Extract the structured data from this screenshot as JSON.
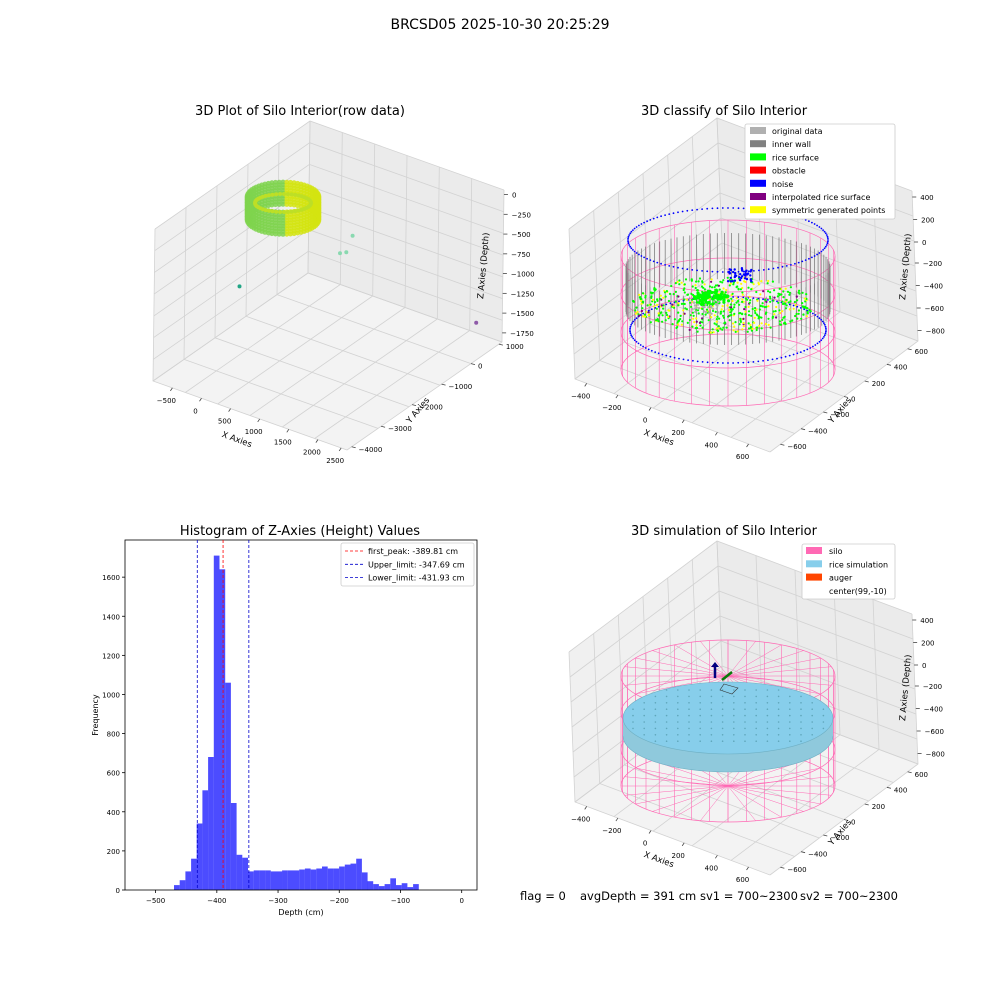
{
  "figure": {
    "title": "BRCSD05 2025-10-30 20:25:29"
  },
  "status": {
    "flag": "flag = 0",
    "avg_depth": "avgDepth = 391 cm",
    "sv1": "sv1 = 700~2300",
    "sv2": "sv2 = 700~2300"
  },
  "colors": {
    "original_data": "#b0b0b0",
    "inner_wall": "#808080",
    "rice_surface": "#00ff00",
    "obstacle": "#ff0000",
    "noise": "#0000ff",
    "interpolated_rice_surface": "#800080",
    "symmetric_generated_points": "#ffff00",
    "silo": "#ff69b4",
    "rice_simulation": "#87ceeb",
    "auger": "#ff4500",
    "hist_bar": "#0000ff",
    "first_peak_line": "#ff0000",
    "limit_line": "#0000cc"
  },
  "chart_data": [
    {
      "type": "scatter",
      "projection": "3d",
      "title": "3D Plot of Silo Interior(row data)",
      "xlabel": "X Axies",
      "ylabel": "Y Axies",
      "zlabel": "Z Axies (Depth)",
      "xticks": [
        "−500",
        "0",
        "500",
        "1000",
        "1500",
        "2000",
        "2500"
      ],
      "yticks": [
        "−4000",
        "−3000",
        "−2000",
        "−1000",
        "0",
        "1000"
      ],
      "zticks": [
        "−1750",
        "−1500",
        "−1250",
        "−1000",
        "−750",
        "−500",
        "−250",
        "0"
      ],
      "xlim": [
        -600,
        2800
      ],
      "ylim": [
        -4000,
        1200
      ],
      "zlim": [
        -1900,
        50
      ],
      "grid": true,
      "colormap": "viridis",
      "outliers": [
        {
          "x": 2500,
          "y": 900,
          "z": -1650
        },
        {
          "x": -400,
          "y": -1500,
          "z": -1300
        },
        {
          "x": 1300,
          "y": -1200,
          "z": -500
        },
        {
          "x": 1200,
          "y": -800,
          "z": -420
        },
        {
          "x": 1500,
          "y": -1800,
          "z": -300
        }
      ]
    },
    {
      "type": "scatter",
      "projection": "3d",
      "title": "3D classify of Silo Interior",
      "xlabel": "X Axies",
      "ylabel": "Y Axies",
      "zlabel": "Z Axies (Depth)",
      "xticks": [
        "−400",
        "−200",
        "0",
        "200",
        "400",
        "600"
      ],
      "yticks": [
        "−600",
        "−400",
        "−200",
        "0",
        "200",
        "400",
        "600"
      ],
      "zticks": [
        "−800",
        "−600",
        "−400",
        "−200",
        "0",
        "200",
        "400"
      ],
      "xlim": [
        -500,
        700
      ],
      "ylim": [
        -700,
        700
      ],
      "zlim": [
        -900,
        450
      ],
      "grid": true,
      "legend_position": "top-right",
      "legend": [
        {
          "label": "original data",
          "color_key": "original_data"
        },
        {
          "label": "inner wall",
          "color_key": "inner_wall"
        },
        {
          "label": "rice surface",
          "color_key": "rice_surface"
        },
        {
          "label": "obstacle",
          "color_key": "obstacle"
        },
        {
          "label": "noise",
          "color_key": "noise"
        },
        {
          "label": "interpolated rice surface",
          "color_key": "interpolated_rice_surface"
        },
        {
          "label": "symmetric generated points",
          "color_key": "symmetric_generated_points"
        }
      ]
    },
    {
      "type": "bar",
      "title": "Histogram of Z-Axies (Height) Values",
      "xlabel": "Depth (cm)",
      "ylabel": "Frequency",
      "xlim": [
        -550,
        25
      ],
      "ylim": [
        0,
        1790
      ],
      "xticks": [
        -500,
        -400,
        -300,
        -200,
        -100,
        0
      ],
      "yticks": [
        0,
        200,
        400,
        600,
        800,
        1000,
        1200,
        1400,
        1600
      ],
      "bin_start": -470,
      "bin_width": 9.3,
      "values": [
        25,
        50,
        95,
        160,
        340,
        510,
        680,
        1710,
        1640,
        1060,
        445,
        180,
        165,
        95,
        100,
        100,
        100,
        95,
        95,
        100,
        100,
        100,
        105,
        110,
        105,
        110,
        120,
        110,
        110,
        120,
        130,
        135,
        160,
        90,
        45,
        30,
        20,
        30,
        60,
        25,
        35,
        15,
        30
      ],
      "vlines": [
        {
          "x": -389.81,
          "label": "first_peak: -389.81 cm",
          "color_key": "first_peak_line"
        },
        {
          "x": -347.69,
          "label": "Upper_limit: -347.69 cm",
          "color_key": "limit_line"
        },
        {
          "x": -431.93,
          "label": "Lower_limit: -431.93 cm",
          "color_key": "limit_line"
        }
      ],
      "legend_position": "top-right"
    },
    {
      "type": "scatter",
      "projection": "3d",
      "title": "3D simulation of Silo Interior",
      "xlabel": "X Axies",
      "ylabel": "Y Axies",
      "zlabel": "Z Axies (Depth)",
      "xticks": [
        "−400",
        "−200",
        "0",
        "200",
        "400",
        "600"
      ],
      "yticks": [
        "−600",
        "−400",
        "−200",
        "0",
        "200",
        "400",
        "600"
      ],
      "zticks": [
        "−800",
        "−600",
        "−400",
        "−200",
        "0",
        "200",
        "400"
      ],
      "xlim": [
        -500,
        700
      ],
      "ylim": [
        -700,
        700
      ],
      "zlim": [
        -900,
        450
      ],
      "grid": true,
      "legend_position": "top-right",
      "legend": [
        {
          "label": "silo",
          "color_key": "silo"
        },
        {
          "label": "rice simulation",
          "color_key": "rice_simulation"
        },
        {
          "label": "auger",
          "color_key": "auger"
        },
        {
          "label": "center(99,-10)",
          "color_key": ""
        }
      ]
    }
  ]
}
